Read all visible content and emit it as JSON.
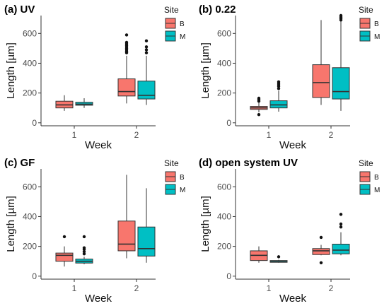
{
  "figure": {
    "background": "#ffffff",
    "fill_colors": {
      "B": "#F8766D",
      "M": "#00BFC4"
    },
    "line_color": "#333333"
  },
  "chart_data": [
    {
      "type": "boxplot",
      "title": "(a) UV",
      "xlabel": "Week",
      "ylabel": "Length [µm]",
      "categories": [
        "1",
        "2"
      ],
      "ylim": [
        -20,
        720
      ],
      "yticks": [
        0,
        200,
        400,
        600
      ],
      "legend": {
        "title": "Site",
        "entries": [
          "B",
          "M"
        ],
        "position": "top-right"
      },
      "grid": false,
      "series": [
        {
          "name": "B",
          "color": "#F8766D",
          "boxes": [
            {
              "x": "1",
              "whisker_low": 80,
              "q1": 100,
              "median": 120,
              "q3": 145,
              "whisker_high": 185,
              "outliers": []
            },
            {
              "x": "2",
              "whisker_low": 130,
              "q1": 180,
              "median": 210,
              "q3": 295,
              "whisker_high": 450,
              "outliers": [
                470,
                480,
                490,
                500,
                510,
                520,
                530,
                540,
                590
              ]
            }
          ]
        },
        {
          "name": "M",
          "color": "#00BFC4",
          "boxes": [
            {
              "x": "1",
              "whisker_low": 100,
              "q1": 118,
              "median": 125,
              "q3": 138,
              "whisker_high": 165,
              "outliers": []
            },
            {
              "x": "2",
              "whisker_low": 120,
              "q1": 160,
              "median": 185,
              "q3": 280,
              "whisker_high": 450,
              "outliers": [
                470,
                490,
                510,
                550
              ]
            }
          ]
        }
      ]
    },
    {
      "type": "boxplot",
      "title": "(b) 0.22",
      "xlabel": "Week",
      "ylabel": "Length [µm]",
      "categories": [
        "1",
        "2"
      ],
      "ylim": [
        -20,
        720
      ],
      "yticks": [
        0,
        200,
        400,
        600
      ],
      "legend": {
        "title": "Site",
        "entries": [
          "B",
          "M"
        ],
        "position": "top-right"
      },
      "grid": false,
      "series": [
        {
          "name": "B",
          "color": "#F8766D",
          "boxes": [
            {
              "x": "1",
              "whisker_low": 70,
              "q1": 90,
              "median": 100,
              "q3": 110,
              "whisker_high": 135,
              "outliers": [
                55,
                145,
                155,
                165
              ]
            },
            {
              "x": "2",
              "whisker_low": 120,
              "q1": 170,
              "median": 270,
              "q3": 390,
              "whisker_high": 690,
              "outliers": []
            }
          ]
        },
        {
          "name": "M",
          "color": "#00BFC4",
          "boxes": [
            {
              "x": "1",
              "whisker_low": 75,
              "q1": 100,
              "median": 120,
              "q3": 148,
              "whisker_high": 215,
              "outliers": [
                230,
                245,
                255,
                265,
                275
              ]
            },
            {
              "x": "2",
              "whisker_low": 80,
              "q1": 160,
              "median": 210,
              "q3": 370,
              "whisker_high": 680,
              "outliers": [
                690,
                700,
                710,
                720
              ]
            }
          ]
        }
      ]
    },
    {
      "type": "boxplot",
      "title": "(c) GF",
      "xlabel": "Week",
      "ylabel": "Length [µm]",
      "categories": [
        "1",
        "2"
      ],
      "ylim": [
        -20,
        720
      ],
      "yticks": [
        0,
        200,
        400,
        600
      ],
      "legend": {
        "title": "Site",
        "entries": [
          "B",
          "M"
        ],
        "position": "top-right"
      },
      "grid": false,
      "series": [
        {
          "name": "B",
          "color": "#F8766D",
          "boxes": [
            {
              "x": "1",
              "whisker_low": 65,
              "q1": 100,
              "median": 140,
              "q3": 155,
              "whisker_high": 200,
              "outliers": [
                265
              ]
            },
            {
              "x": "2",
              "whisker_low": 120,
              "q1": 170,
              "median": 215,
              "q3": 370,
              "whisker_high": 680,
              "outliers": []
            }
          ]
        },
        {
          "name": "M",
          "color": "#00BFC4",
          "boxes": [
            {
              "x": "1",
              "whisker_low": 80,
              "q1": 88,
              "median": 100,
              "q3": 115,
              "whisker_high": 130,
              "outliers": [
                150,
                165,
                180,
                190,
                265
              ]
            },
            {
              "x": "2",
              "whisker_low": 90,
              "q1": 135,
              "median": 185,
              "q3": 330,
              "whisker_high": 590,
              "outliers": []
            }
          ]
        }
      ]
    },
    {
      "type": "boxplot",
      "title": "(d) open system UV",
      "xlabel": "Week",
      "ylabel": "Length [µm]",
      "categories": [
        "1",
        "2"
      ],
      "ylim": [
        -20,
        720
      ],
      "yticks": [
        0,
        200,
        400,
        600
      ],
      "legend": {
        "title": "Site",
        "entries": [
          "B",
          "M"
        ],
        "position": "top-right"
      },
      "grid": false,
      "series": [
        {
          "name": "B",
          "color": "#F8766D",
          "boxes": [
            {
              "x": "1",
              "whisker_low": 90,
              "q1": 105,
              "median": 140,
              "q3": 170,
              "whisker_high": 200,
              "outliers": []
            },
            {
              "x": "2",
              "whisker_low": 140,
              "q1": 145,
              "median": 170,
              "q3": 185,
              "whisker_high": 210,
              "outliers": [
                90,
                260
              ]
            }
          ]
        },
        {
          "name": "M",
          "color": "#00BFC4",
          "boxes": [
            {
              "x": "1",
              "whisker_low": 90,
              "q1": 93,
              "median": 98,
              "q3": 105,
              "whisker_high": 110,
              "outliers": [
                130
              ]
            },
            {
              "x": "2",
              "whisker_low": 140,
              "q1": 150,
              "median": 175,
              "q3": 215,
              "whisker_high": 295,
              "outliers": [
                330,
                350,
                415
              ]
            }
          ]
        }
      ]
    }
  ]
}
